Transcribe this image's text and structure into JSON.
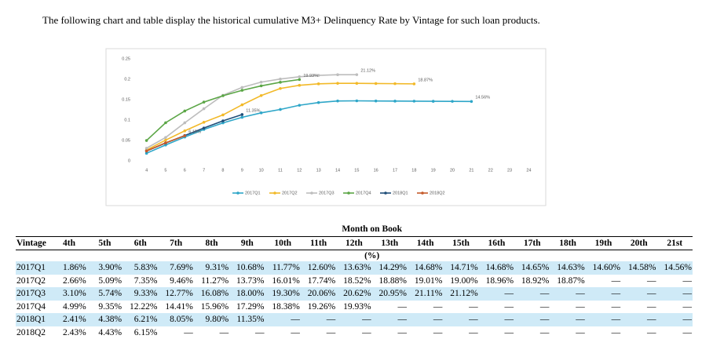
{
  "intro": "The following chart and table display the historical cumulative M3+ Delinquency Rate by Vintage for such loan products.",
  "chart_data": {
    "type": "line",
    "x": [
      4,
      5,
      6,
      7,
      8,
      9,
      10,
      11,
      12,
      13,
      14,
      15,
      16,
      17,
      18,
      19,
      20,
      21
    ],
    "xlim": [
      3.4,
      24.6
    ],
    "xticks": [
      4,
      5,
      6,
      7,
      8,
      9,
      10,
      11,
      12,
      13,
      14,
      15,
      16,
      17,
      18,
      19,
      20,
      21,
      22,
      23,
      24
    ],
    "ylim": [
      0,
      0.25
    ],
    "yticks": [
      0,
      0.05,
      0.1,
      0.15,
      0.2,
      0.25
    ],
    "grid": false,
    "legend": "bottom",
    "series": [
      {
        "name": "2017Q1",
        "color": "#2ea6c8",
        "end_label": "14.56%",
        "values": [
          0.0186,
          0.039,
          0.0583,
          0.0769,
          0.0931,
          0.1068,
          0.1177,
          0.126,
          0.1363,
          0.1429,
          0.1468,
          0.1471,
          0.1468,
          0.1465,
          0.1463,
          0.146,
          0.1458,
          0.1456
        ]
      },
      {
        "name": "2017Q2",
        "color": "#f2b928",
        "end_label": "18.87%",
        "values": [
          0.0266,
          0.0509,
          0.0735,
          0.0946,
          0.1127,
          0.1373,
          0.1601,
          0.1774,
          0.1852,
          0.1888,
          0.1901,
          0.19,
          0.1896,
          0.1892,
          0.1887,
          null,
          null,
          null
        ]
      },
      {
        "name": "2017Q3",
        "color": "#bdbdbd",
        "end_label": "21.12%",
        "values": [
          0.031,
          0.0574,
          0.0933,
          0.1277,
          0.1608,
          0.18,
          0.193,
          0.2006,
          0.2062,
          0.2095,
          0.2111,
          0.2112,
          null,
          null,
          null,
          null,
          null,
          null
        ]
      },
      {
        "name": "2017Q4",
        "color": "#5ba646",
        "end_label": "19.93%",
        "values": [
          0.0499,
          0.0935,
          0.1222,
          0.1441,
          0.1596,
          0.1729,
          0.1838,
          0.1926,
          0.1993,
          null,
          null,
          null,
          null,
          null,
          null,
          null,
          null,
          null
        ]
      },
      {
        "name": "2018Q1",
        "color": "#1f4e79",
        "end_label": "11.35%",
        "values": [
          0.0241,
          0.0438,
          0.0621,
          0.0805,
          0.098,
          0.1135,
          null,
          null,
          null,
          null,
          null,
          null,
          null,
          null,
          null,
          null,
          null,
          null
        ]
      },
      {
        "name": "2018Q2",
        "color": "#c55a2b",
        "end_label": "6.15%",
        "values": [
          0.0243,
          0.0443,
          0.0615,
          null,
          null,
          null,
          null,
          null,
          null,
          null,
          null,
          null,
          null,
          null,
          null,
          null,
          null,
          null
        ]
      }
    ]
  },
  "table": {
    "group": "Month on Book",
    "unit": "(%)",
    "columns": [
      "Vintage",
      "4th",
      "5th",
      "6th",
      "7th",
      "8th",
      "9th",
      "10th",
      "11th",
      "12th",
      "13th",
      "14th",
      "15th",
      "16th",
      "17th",
      "18th",
      "19th",
      "20th",
      "21st"
    ],
    "rows": [
      [
        "2017Q1",
        "1.86%",
        "3.90%",
        "5.83%",
        "7.69%",
        "9.31%",
        "10.68%",
        "11.77%",
        "12.60%",
        "13.63%",
        "14.29%",
        "14.68%",
        "14.71%",
        "14.68%",
        "14.65%",
        "14.63%",
        "14.60%",
        "14.58%",
        "14.56%"
      ],
      [
        "2017Q2",
        "2.66%",
        "5.09%",
        "7.35%",
        "9.46%",
        "11.27%",
        "13.73%",
        "16.01%",
        "17.74%",
        "18.52%",
        "18.88%",
        "19.01%",
        "19.00%",
        "18.96%",
        "18.92%",
        "18.87%",
        "—",
        "—",
        "—"
      ],
      [
        "2017Q3",
        "3.10%",
        "5.74%",
        "9.33%",
        "12.77%",
        "16.08%",
        "18.00%",
        "19.30%",
        "20.06%",
        "20.62%",
        "20.95%",
        "21.11%",
        "21.12%",
        "—",
        "—",
        "—",
        "—",
        "—",
        "—"
      ],
      [
        "2017Q4",
        "4.99%",
        "9.35%",
        "12.22%",
        "14.41%",
        "15.96%",
        "17.29%",
        "18.38%",
        "19.26%",
        "19.93%",
        "—",
        "—",
        "—",
        "—",
        "—",
        "—",
        "—",
        "—",
        "—"
      ],
      [
        "2018Q1",
        "2.41%",
        "4.38%",
        "6.21%",
        "8.05%",
        "9.80%",
        "11.35%",
        "—",
        "—",
        "—",
        "—",
        "—",
        "—",
        "—",
        "—",
        "—",
        "—",
        "—",
        "—"
      ],
      [
        "2018Q2",
        "2.43%",
        "4.43%",
        "6.15%",
        "—",
        "—",
        "—",
        "—",
        "—",
        "—",
        "—",
        "—",
        "—",
        "—",
        "—",
        "—",
        "—",
        "—",
        "—"
      ]
    ]
  }
}
